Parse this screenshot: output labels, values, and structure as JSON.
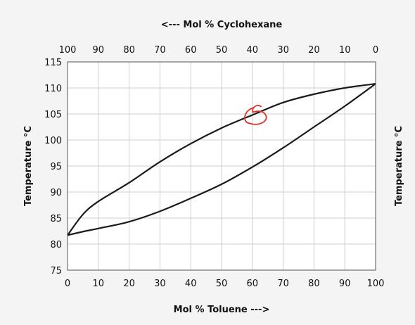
{
  "chart_data": {
    "type": "line",
    "title": "",
    "xlabel": "Mol % Toluene   --->",
    "x2label": "<---  Mol % Cyclohexane",
    "ylabel": "Temperature °C",
    "y2label": "Temperature °C",
    "xlim": [
      0,
      100
    ],
    "x2lim": [
      100,
      0
    ],
    "ylim": [
      75,
      115
    ],
    "x_ticks": [
      "0",
      "10",
      "20",
      "30",
      "40",
      "50",
      "60",
      "70",
      "80",
      "90",
      "100"
    ],
    "x2_ticks": [
      "100",
      "90",
      "80",
      "70",
      "60",
      "50",
      "40",
      "30",
      "20",
      "10",
      "0"
    ],
    "y_ticks": [
      "75",
      "80",
      "85",
      "90",
      "95",
      "100",
      "105",
      "110",
      "115"
    ],
    "grid": true,
    "legend": "none",
    "series": [
      {
        "x": [
          0,
          5,
          10,
          20,
          30,
          40,
          50,
          60,
          70,
          80,
          90,
          100
        ],
        "y": [
          81.7,
          82.4,
          83.0,
          84.3,
          86.3,
          88.8,
          91.5,
          94.8,
          98.5,
          102.5,
          106.5,
          110.8
        ]
      },
      {
        "x": [
          0,
          5,
          10,
          20,
          30,
          40,
          50,
          60,
          70,
          80,
          90,
          100
        ],
        "y": [
          81.7,
          85.7,
          88.2,
          91.8,
          95.8,
          99.3,
          102.3,
          104.8,
          107.2,
          108.8,
          110.0,
          110.8
        ]
      }
    ],
    "annotation": {
      "type": "hand-drawn circle",
      "color": "#e0302a",
      "x": 61,
      "y": 104.8
    }
  }
}
